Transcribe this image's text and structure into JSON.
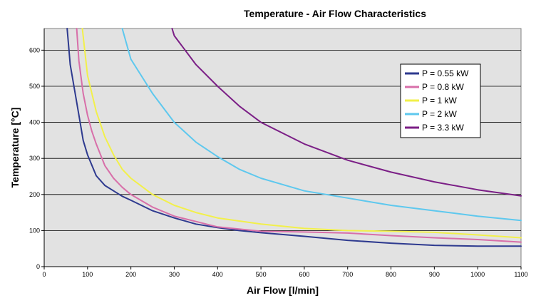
{
  "chart_data": {
    "type": "line",
    "title": "Temperature - Air Flow Characteristics",
    "xlabel": "Air Flow [l/min]",
    "ylabel": "Temperature [°C]",
    "xlim": [
      0,
      1100
    ],
    "ylim": [
      0,
      660
    ],
    "xticks": [
      0,
      100,
      200,
      300,
      400,
      500,
      600,
      700,
      800,
      900,
      1000,
      1100
    ],
    "yticks": [
      0,
      100,
      200,
      300,
      400,
      500,
      600
    ],
    "grid": "horizontal",
    "legend_position": "top-right",
    "series": [
      {
        "name": "P = 0.55 kW",
        "color": "#2e3a8f",
        "x": [
          53,
          60,
          70,
          80,
          90,
          100,
          120,
          140,
          160,
          180,
          200,
          250,
          300,
          350,
          400,
          450,
          500,
          600,
          700,
          800,
          900,
          1000,
          1100
        ],
        "y": [
          660,
          560,
          490,
          420,
          350,
          310,
          252,
          225,
          210,
          195,
          184,
          155,
          135,
          118,
          108,
          100,
          94,
          84,
          73,
          65,
          59,
          57,
          57
        ]
      },
      {
        "name": "P = 0.8 kW",
        "color": "#d86fa9",
        "x": [
          75,
          80,
          90,
          100,
          110,
          120,
          140,
          160,
          180,
          200,
          250,
          300,
          350,
          400,
          500,
          600,
          700,
          800,
          900,
          1000,
          1100
        ],
        "y": [
          660,
          570,
          480,
          420,
          375,
          340,
          280,
          245,
          220,
          200,
          165,
          140,
          125,
          110,
          98,
          96,
          93,
          86,
          80,
          75,
          68
        ]
      },
      {
        "name": "P = 1 kW",
        "color": "#f2f04a",
        "x": [
          88,
          100,
          120,
          140,
          160,
          180,
          200,
          250,
          300,
          350,
          400,
          500,
          600,
          700,
          800,
          900,
          1000,
          1100
        ],
        "y": [
          660,
          530,
          430,
          360,
          310,
          270,
          245,
          200,
          170,
          150,
          135,
          118,
          106,
          100,
          98,
          95,
          88,
          80
        ]
      },
      {
        "name": "P = 2 kW",
        "color": "#5ec8ee",
        "x": [
          180,
          200,
          250,
          300,
          350,
          400,
          450,
          500,
          600,
          700,
          800,
          900,
          1000,
          1100
        ],
        "y": [
          660,
          575,
          480,
          400,
          345,
          305,
          270,
          245,
          210,
          190,
          170,
          155,
          140,
          128
        ]
      },
      {
        "name": "P = 3.3 kW",
        "color": "#7b1f86",
        "x": [
          295,
          300,
          350,
          400,
          450,
          500,
          600,
          700,
          800,
          900,
          1000,
          1100
        ],
        "y": [
          660,
          640,
          560,
          500,
          445,
          400,
          340,
          295,
          262,
          235,
          213,
          196
        ]
      }
    ]
  }
}
